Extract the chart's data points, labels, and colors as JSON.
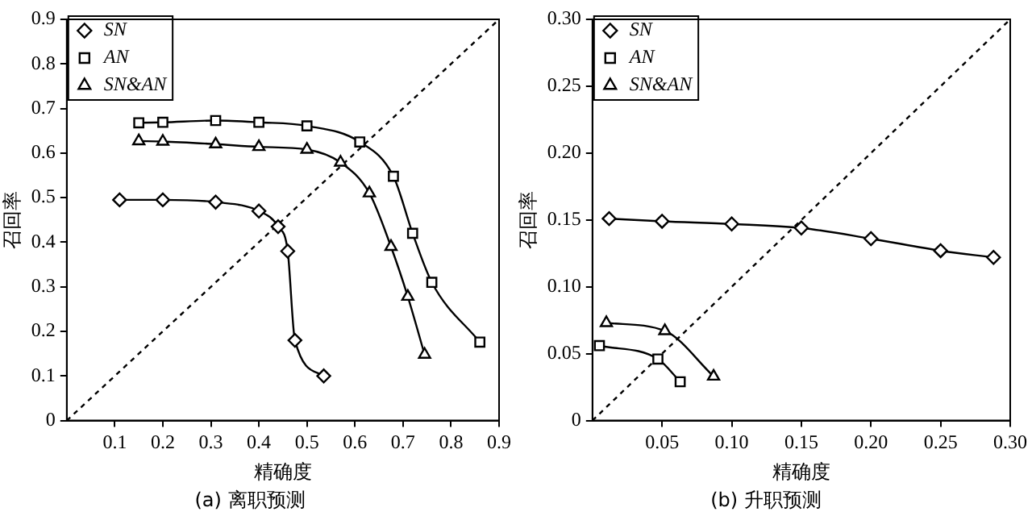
{
  "chart_data": [
    {
      "type": "line",
      "title": "(a) 离职预测",
      "xlabel": "精确度",
      "ylabel": "召回率",
      "xlim": [
        0,
        0.9
      ],
      "ylim": [
        0,
        0.9
      ],
      "xticks": [
        0.1,
        0.2,
        0.3,
        0.4,
        0.5,
        0.6,
        0.7,
        0.8,
        0.9
      ],
      "yticks": [
        0,
        0.1,
        0.2,
        0.3,
        0.4,
        0.5,
        0.6,
        0.7,
        0.8,
        0.9
      ],
      "legend": "top left",
      "grid": false,
      "series": [
        {
          "name": "SN",
          "color": "#000000",
          "marker": "diamond",
          "x": [
            0.11,
            0.2,
            0.31,
            0.4,
            0.44,
            0.46,
            0.475,
            0.535
          ],
          "values": [
            0.495,
            0.495,
            0.49,
            0.47,
            0.435,
            0.38,
            0.18,
            0.1
          ]
        },
        {
          "name": "AN",
          "color": "#000000",
          "marker": "square",
          "x": [
            0.15,
            0.2,
            0.31,
            0.4,
            0.5,
            0.61,
            0.68,
            0.72,
            0.76,
            0.86
          ],
          "values": [
            0.668,
            0.669,
            0.673,
            0.669,
            0.661,
            0.625,
            0.548,
            0.42,
            0.31,
            0.176
          ]
        },
        {
          "name": "SN&AN",
          "color": "#000000",
          "marker": "triangle",
          "x": [
            0.15,
            0.2,
            0.31,
            0.4,
            0.5,
            0.57,
            0.63,
            0.675,
            0.71,
            0.745
          ],
          "values": [
            0.627,
            0.626,
            0.62,
            0.614,
            0.608,
            0.579,
            0.51,
            0.39,
            0.278,
            0.148
          ]
        },
        {
          "color": "#000000",
          "marker": "none",
          "line_style": "dashed",
          "x": [
            0,
            0.9
          ],
          "values": [
            0,
            0.9
          ]
        }
      ]
    },
    {
      "type": "line",
      "title": "(b) 升职预测",
      "xlabel": "精确度",
      "ylabel": "召回率",
      "xlim": [
        0,
        0.3
      ],
      "ylim": [
        0,
        0.3
      ],
      "xticks": [
        {
          "value": 0.05,
          "label": "0.05"
        },
        {
          "value": 0.1,
          "label": "0.10"
        },
        {
          "value": 0.15,
          "label": "0.15"
        },
        {
          "value": 0.2,
          "label": "0.20"
        },
        {
          "value": 0.25,
          "label": "0.25"
        },
        {
          "value": 0.3,
          "label": "0.30"
        }
      ],
      "yticks": [
        0,
        {
          "value": 0.05,
          "label": "0.05"
        },
        {
          "value": 0.1,
          "label": "0.10"
        },
        {
          "value": 0.15,
          "label": "0.15"
        },
        {
          "value": 0.2,
          "label": "0.20"
        },
        {
          "value": 0.25,
          "label": "0.25"
        },
        {
          "value": 0.3,
          "label": "0.30"
        }
      ],
      "legend": "top left",
      "grid": false,
      "series": [
        {
          "name": "SN",
          "color": "#000000",
          "marker": "diamond",
          "x": [
            0.012,
            0.05,
            0.1,
            0.15,
            0.2,
            0.25,
            0.288
          ],
          "values": [
            0.151,
            0.149,
            0.147,
            0.144,
            0.136,
            0.127,
            0.122
          ]
        },
        {
          "name": "AN",
          "color": "#000000",
          "marker": "square",
          "x": [
            0.005,
            0.047,
            0.063
          ],
          "values": [
            0.056,
            0.046,
            0.029
          ]
        },
        {
          "name": "SN&AN",
          "color": "#000000",
          "marker": "triangle",
          "x": [
            0.01,
            0.052,
            0.087
          ],
          "values": [
            0.073,
            0.067,
            0.033
          ]
        },
        {
          "color": "#000000",
          "marker": "none",
          "line_style": "dashed",
          "x": [
            0,
            0.3
          ],
          "values": [
            0,
            0.3
          ]
        }
      ]
    }
  ]
}
